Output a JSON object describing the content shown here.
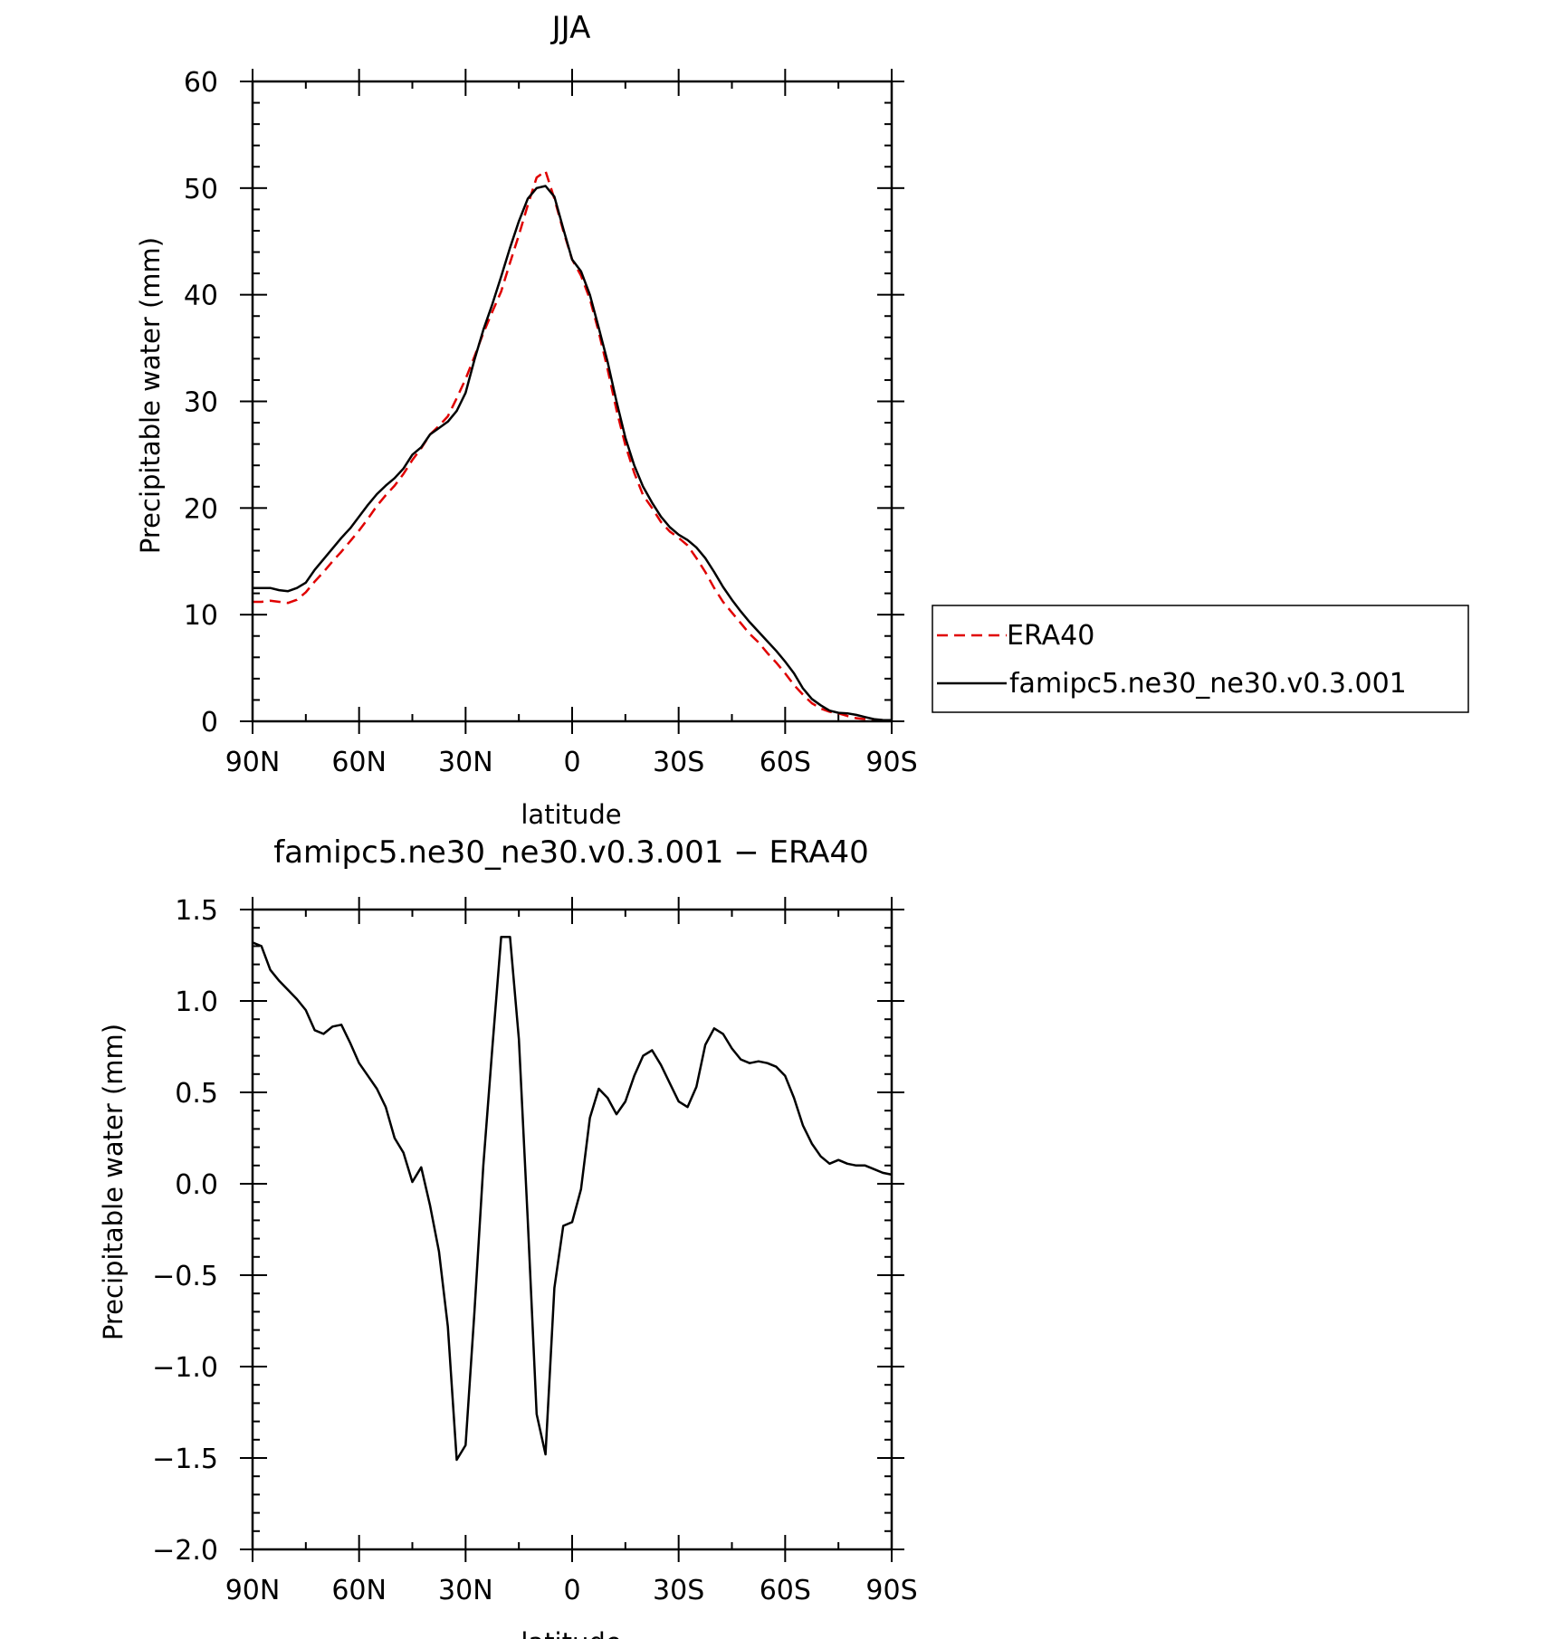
{
  "chart_data": [
    {
      "type": "line",
      "title": "JJA",
      "xlabel": "latitude",
      "ylabel": "Precipitable water (mm)",
      "xlim": [
        90,
        -90
      ],
      "ylim": [
        0,
        60
      ],
      "x_tick_values": [
        90,
        60,
        30,
        0,
        -30,
        -60,
        -90
      ],
      "x_tick_labels": [
        "90N",
        "60N",
        "30N",
        "0",
        "30S",
        "60S",
        "90S"
      ],
      "y_tick_values": [
        0,
        10,
        20,
        30,
        40,
        50,
        60
      ],
      "y_tick_labels": [
        "0",
        "10",
        "20",
        "30",
        "40",
        "50",
        "60"
      ],
      "legend_position": "right",
      "series": [
        {
          "name": "ERA40",
          "color": "#e00000",
          "dash": "dashed",
          "x": [
            90,
            87.5,
            85,
            82.5,
            80,
            77.5,
            75,
            72.5,
            70,
            67.5,
            65,
            62.5,
            60,
            57.5,
            55,
            52.5,
            50,
            47.5,
            45,
            42.5,
            40,
            37.5,
            35,
            32.5,
            30,
            27.5,
            25,
            22.5,
            20,
            17.5,
            15,
            12.5,
            10,
            7.5,
            5,
            2.5,
            0,
            -2.5,
            -5,
            -7.5,
            -10,
            -12.5,
            -15,
            -17.5,
            -20,
            -22.5,
            -25,
            -27.5,
            -30,
            -32.5,
            -35,
            -37.5,
            -40,
            -42.5,
            -45,
            -47.5,
            -50,
            -52.5,
            -55,
            -57.5,
            -60,
            -62.5,
            -65,
            -67.5,
            -70,
            -72.5,
            -75,
            -77.5,
            -80,
            -82.5,
            -85,
            -87.5,
            -90
          ],
          "y": [
            11.2,
            11.2,
            11.3,
            11.2,
            11.1,
            11.4,
            12.1,
            13.1,
            14.0,
            15.0,
            15.9,
            16.9,
            17.9,
            19.0,
            20.2,
            21.2,
            22.1,
            23.2,
            24.5,
            25.6,
            26.9,
            27.7,
            28.6,
            30.3,
            32.1,
            34.2,
            36.4,
            38.4,
            40.3,
            43.0,
            45.6,
            48.4,
            51.0,
            51.6,
            49.0,
            46.0,
            43.3,
            41.8,
            39.6,
            36.5,
            33.0,
            29.2,
            25.9,
            23.3,
            21.2,
            20.0,
            18.7,
            17.8,
            17.2,
            16.5,
            15.3,
            14.0,
            12.5,
            11.2,
            10.2,
            9.2,
            8.2,
            7.4,
            6.4,
            5.5,
            4.5,
            3.4,
            2.5,
            1.7,
            1.2,
            0.9,
            0.75,
            0.5,
            0.3,
            0.2,
            0.15,
            0.1,
            0.08
          ]
        },
        {
          "name": "famipc5.ne30_ne30.v0.3.001",
          "color": "#000000",
          "dash": "solid",
          "x": [
            90,
            87.5,
            85,
            82.5,
            80,
            77.5,
            75,
            72.5,
            70,
            67.5,
            65,
            62.5,
            60,
            57.5,
            55,
            52.5,
            50,
            47.5,
            45,
            42.5,
            40,
            37.5,
            35,
            32.5,
            30,
            27.5,
            25,
            22.5,
            20,
            17.5,
            15,
            12.5,
            10,
            7.5,
            5,
            2.5,
            0,
            -2.5,
            -5,
            -7.5,
            -10,
            -12.5,
            -15,
            -17.5,
            -20,
            -22.5,
            -25,
            -27.5,
            -30,
            -32.5,
            -35,
            -37.5,
            -40,
            -42.5,
            -45,
            -47.5,
            -50,
            -52.5,
            -55,
            -57.5,
            -60,
            -62.5,
            -65,
            -67.5,
            -70,
            -72.5,
            -75,
            -77.5,
            -80,
            -82.5,
            -85,
            -87.5,
            -90
          ],
          "y": [
            12.5,
            12.5,
            12.5,
            12.3,
            12.2,
            12.5,
            13.0,
            14.2,
            15.2,
            16.2,
            17.2,
            18.1,
            19.2,
            20.3,
            21.3,
            22.1,
            22.8,
            23.7,
            25.0,
            25.7,
            26.9,
            27.5,
            28.1,
            29.1,
            30.8,
            33.9,
            36.7,
            39.1,
            41.7,
            44.4,
            46.9,
            49.0,
            50.0,
            50.2,
            49.2,
            46.2,
            43.3,
            42.2,
            40.0,
            36.9,
            33.7,
            30.0,
            26.6,
            24.0,
            22.0,
            20.5,
            19.2,
            18.2,
            17.5,
            17.0,
            16.3,
            15.3,
            14.0,
            12.6,
            11.4,
            10.3,
            9.3,
            8.4,
            7.5,
            6.6,
            5.6,
            4.5,
            3.1,
            2.1,
            1.5,
            1.0,
            0.8,
            0.75,
            0.6,
            0.4,
            0.2,
            0.12,
            0.1
          ]
        }
      ]
    },
    {
      "type": "line",
      "title": "famipc5.ne30_ne30.v0.3.001 − ERA40",
      "xlabel": "latitude",
      "ylabel": "Precipitable water (mm)",
      "xlim": [
        90,
        -90
      ],
      "ylim": [
        -2.0,
        1.5
      ],
      "x_tick_values": [
        90,
        60,
        30,
        0,
        -30,
        -60,
        -90
      ],
      "x_tick_labels": [
        "90N",
        "60N",
        "30N",
        "0",
        "30S",
        "60S",
        "90S"
      ],
      "y_tick_values": [
        -2.0,
        -1.5,
        -1.0,
        -0.5,
        0.0,
        0.5,
        1.0,
        1.5
      ],
      "y_tick_labels": [
        "−2.0",
        "−1.5",
        "−1.0",
        "−0.5",
        "0.0",
        "0.5",
        "1.0",
        "1.5"
      ],
      "series": [
        {
          "color": "#000000",
          "dash": "solid",
          "x": [
            90,
            87.5,
            85,
            82.5,
            80,
            77.5,
            75,
            72.5,
            70,
            67.5,
            65,
            62.5,
            60,
            57.5,
            55,
            52.5,
            50,
            47.5,
            45,
            42.5,
            40,
            37.5,
            35,
            32.5,
            30,
            27.5,
            25,
            22.5,
            20,
            17.5,
            15,
            12.5,
            10,
            7.5,
            5,
            2.5,
            0,
            -2.5,
            -5,
            -7.5,
            -10,
            -12.5,
            -15,
            -17.5,
            -20,
            -22.5,
            -25,
            -27.5,
            -30,
            -32.5,
            -35,
            -37.5,
            -40,
            -42.5,
            -45,
            -47.5,
            -50,
            -52.5,
            -55,
            -57.5,
            -60,
            -62.5,
            -65,
            -67.5,
            -70,
            -72.5,
            -75,
            -77.5,
            -80,
            -82.5,
            -85,
            -87.5,
            -90
          ],
          "y": [
            1.32,
            1.3,
            1.17,
            1.11,
            1.06,
            1.01,
            0.95,
            0.84,
            0.82,
            0.86,
            0.87,
            0.77,
            0.66,
            0.59,
            0.52,
            0.42,
            0.25,
            0.17,
            0.01,
            0.09,
            -0.12,
            -0.37,
            -0.78,
            -1.51,
            -1.43,
            -0.7,
            0.1,
            0.74,
            1.35,
            1.35,
            0.79,
            -0.2,
            -1.26,
            -1.48,
            -0.57,
            -0.23,
            -0.21,
            -0.03,
            0.36,
            0.52,
            0.47,
            0.38,
            0.45,
            0.59,
            0.7,
            0.73,
            0.65,
            0.55,
            0.45,
            0.42,
            0.53,
            0.76,
            0.85,
            0.82,
            0.74,
            0.68,
            0.66,
            0.67,
            0.66,
            0.64,
            0.59,
            0.47,
            0.32,
            0.22,
            0.15,
            0.11,
            0.13,
            0.11,
            0.1,
            0.1,
            0.08,
            0.06,
            0.05
          ]
        }
      ]
    }
  ]
}
